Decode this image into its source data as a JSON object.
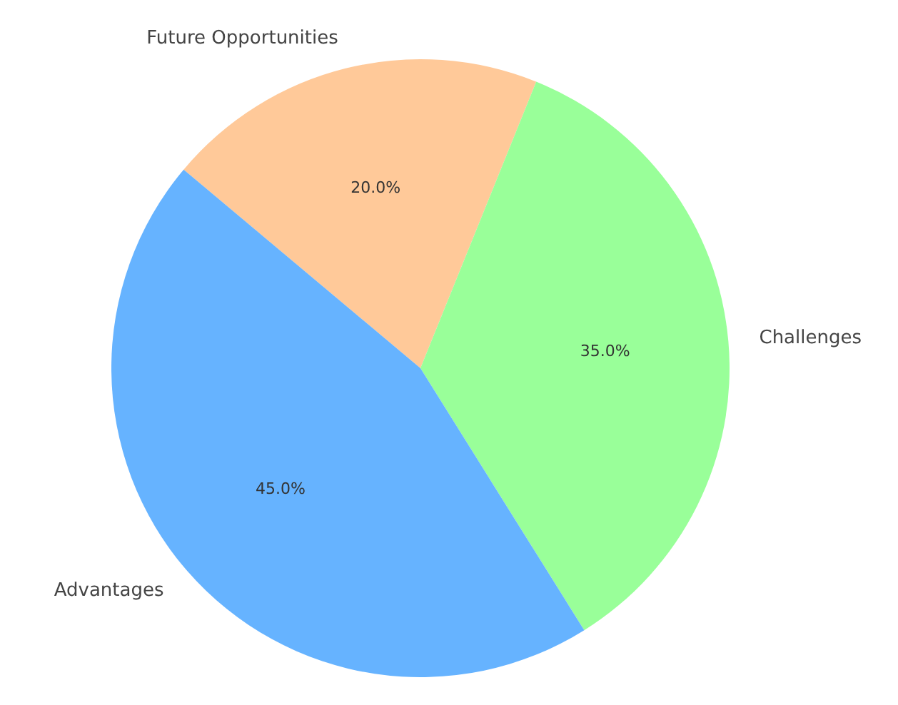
{
  "chart_data": {
    "type": "pie",
    "categories": [
      "Future Opportunities",
      "Challenges",
      "Advantages"
    ],
    "values": [
      20,
      35,
      45
    ],
    "colors": [
      "#ffc999",
      "#99ff99",
      "#66b3ff"
    ],
    "value_labels": [
      "20.0%",
      "35.0%",
      "45.0%"
    ],
    "legend": false
  }
}
